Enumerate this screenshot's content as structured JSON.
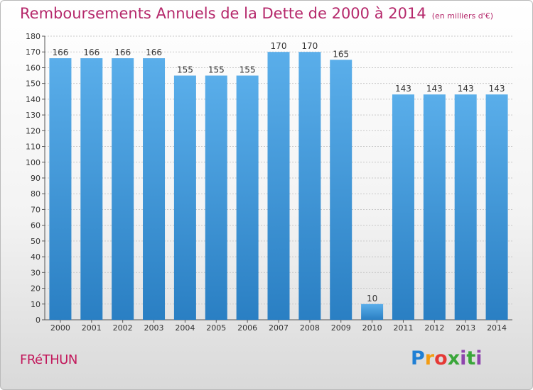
{
  "chart_data": {
    "type": "bar",
    "title": "Remboursements Annuels de la Dette de 2000 à 2014",
    "unit": "(en milliers d'€)",
    "categories": [
      "2000",
      "2001",
      "2002",
      "2003",
      "2004",
      "2005",
      "2006",
      "2007",
      "2008",
      "2009",
      "2010",
      "2011",
      "2012",
      "2013",
      "2014"
    ],
    "values": [
      166,
      166,
      166,
      166,
      155,
      155,
      155,
      170,
      170,
      165,
      10,
      143,
      143,
      143,
      143
    ],
    "ylim": [
      0,
      180
    ],
    "yticks": [
      0,
      10,
      20,
      30,
      40,
      50,
      60,
      70,
      80,
      90,
      100,
      110,
      120,
      130,
      140,
      150,
      160,
      170,
      180
    ],
    "grid": true,
    "bar_color": "#3e96dc"
  },
  "commune": "FRéTHUN",
  "logo": {
    "letters": [
      "P",
      "r",
      "o",
      "x",
      "i",
      "t",
      "i"
    ]
  }
}
